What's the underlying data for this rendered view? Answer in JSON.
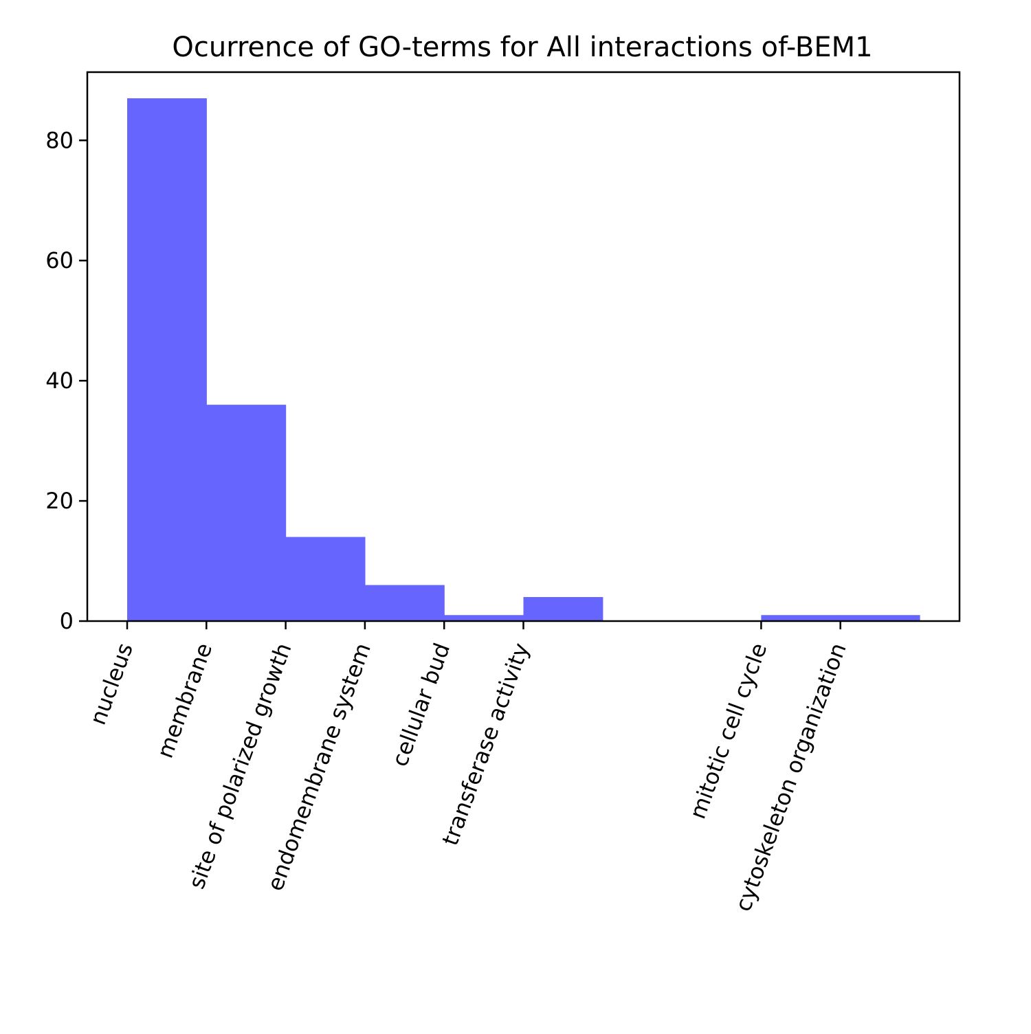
{
  "chart_data": {
    "type": "bar",
    "title": "Ocurrence of GO-terms for All interactions of-BEM1",
    "xlabel": "",
    "ylabel": "",
    "ylim": [
      0,
      91.35
    ],
    "yticks": [
      0,
      20,
      40,
      60,
      80
    ],
    "bar_color": "#6666ff",
    "x_tick_rotation_deg": -70,
    "categories": [
      "nucleus",
      "membrane",
      "site of polarized growth",
      "endomembrane system",
      "cellular bud",
      "transferase activity",
      "",
      "",
      "mitotic cell cycle",
      "cytoskeleton organization"
    ],
    "values": [
      87,
      36,
      14,
      6,
      1,
      4,
      0,
      0,
      1,
      1
    ],
    "tick_categories": [
      "nucleus",
      "membrane",
      "site of polarized growth",
      "endomembrane system",
      "cellular bud",
      "transferase activity",
      "mitotic cell cycle",
      "cytoskeleton organization"
    ],
    "grid": false
  }
}
